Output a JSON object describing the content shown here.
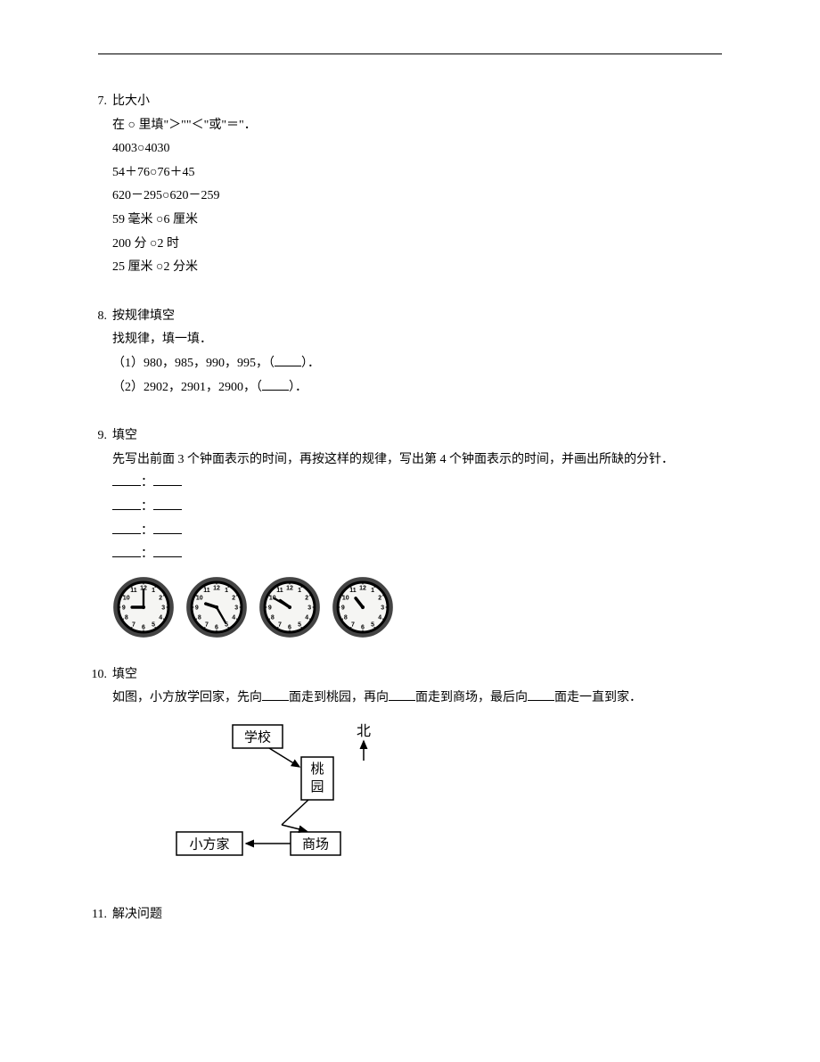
{
  "q7": {
    "num": "7.",
    "title": "比大小",
    "intro": "在 ○ 里填\"＞\"\"＜\"或\"＝\"．",
    "lines": [
      "4003○4030",
      "54＋76○76＋45",
      "620－295○620－259",
      "59 毫米 ○6 厘米",
      "200 分 ○2 时",
      "25 厘米 ○2 分米"
    ]
  },
  "q8": {
    "num": "8.",
    "title": "按规律填空",
    "intro": "找规律，填一填．",
    "item1_pre": "（1）980，985，990，995，（",
    "item1_post": "）．",
    "item2_pre": "（2）2902，2901，2900，（",
    "item2_post": "）．"
  },
  "q9": {
    "num": "9.",
    "title": "填空",
    "intro": "先写出前面 3 个钟面表示的时间，再按这样的规律，写出第 4 个钟面表示的时间，并画出所缺的分针．",
    "colon": "：",
    "clocks": [
      {
        "hour_angle": 270,
        "minute_angle": 0,
        "show_minute": true
      },
      {
        "hour_angle": 288,
        "minute_angle": 150,
        "show_minute": true
      },
      {
        "hour_angle": 305,
        "minute_angle": 300,
        "show_minute": true
      },
      {
        "hour_angle": 322,
        "minute_angle": 0,
        "show_minute": false
      }
    ],
    "clock_style": {
      "face_fill": "#f5f5f3",
      "border_stroke": "#444",
      "hand_stroke": "#000",
      "num_font": "Arial"
    }
  },
  "q10": {
    "num": "10.",
    "title": "填空",
    "text_p1": "如图，小方放学回家，先向",
    "text_p2": "面走到桃园，再向",
    "text_p3": "面走到商场，最后向",
    "text_p4": "面走一直到家．",
    "map": {
      "school": "学校",
      "peach": "桃园",
      "home": "小方家",
      "mall": "商场",
      "north": "北"
    }
  },
  "q11": {
    "num": "11.",
    "title": "解决问题"
  }
}
